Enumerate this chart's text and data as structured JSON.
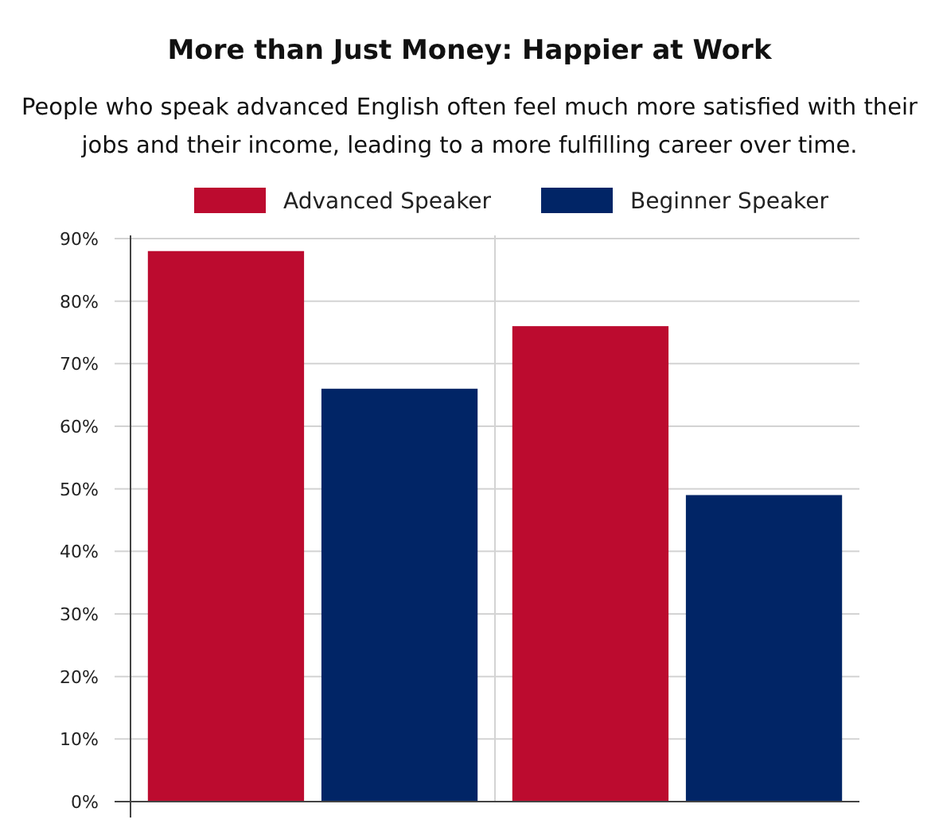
{
  "chart_data": {
    "type": "bar",
    "title": "More than Just Money: Happier at Work",
    "subtitle": "People who speak advanced English often feel much more satisfied with their jobs and their income, leading to a more fulfilling career over time.",
    "categories": [
      null,
      null
    ],
    "series": [
      {
        "name": "Advanced Speaker",
        "color": "#bc0b2f",
        "values": [
          88,
          76
        ]
      },
      {
        "name": "Beginner Speaker",
        "color": "#012566",
        "values": [
          66,
          49
        ]
      }
    ],
    "ylim": [
      0,
      90
    ],
    "yticks": [
      {
        "value": 0,
        "label": "0%"
      },
      {
        "value": 10,
        "label": "10%"
      },
      {
        "value": 20,
        "label": "20%"
      },
      {
        "value": 30,
        "label": "30%"
      },
      {
        "value": 40,
        "label": "40%"
      },
      {
        "value": 50,
        "label": "50%"
      },
      {
        "value": 60,
        "label": "60%"
      },
      {
        "value": 70,
        "label": "70%"
      },
      {
        "value": 80,
        "label": "80%"
      },
      {
        "value": 90,
        "label": "90%"
      }
    ],
    "grid": true,
    "legend": "top"
  }
}
